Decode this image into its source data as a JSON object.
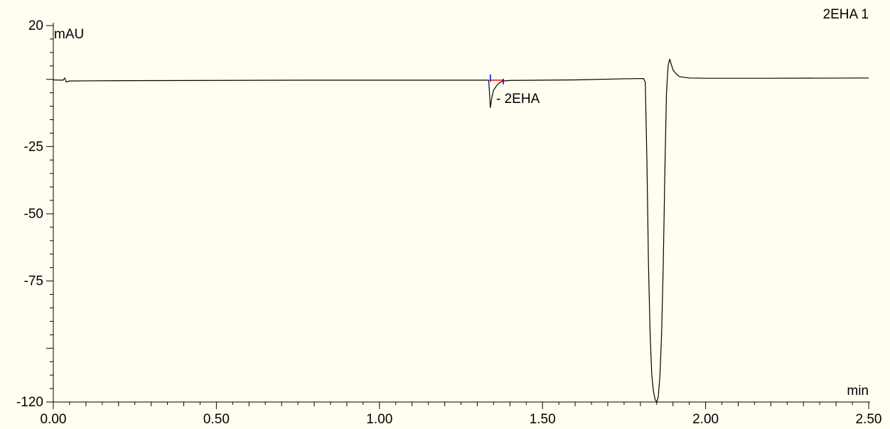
{
  "chart_data": {
    "type": "line",
    "title": "2EHA 1",
    "xlabel": "min",
    "ylabel": "mAU",
    "xlim": [
      0.0,
      2.5
    ],
    "ylim": [
      -120,
      20
    ],
    "x_ticks": [
      0.0,
      0.5,
      1.0,
      1.5,
      2.0,
      2.5
    ],
    "x_tick_labels": [
      "0.00",
      "0.50",
      "1.00",
      "1.50",
      "2.00",
      "2.50"
    ],
    "y_ticks": [
      20,
      -25,
      -50,
      -75,
      -120
    ],
    "y_tick_labels": [
      "20",
      "-25",
      "-50",
      "-75",
      "-120"
    ],
    "grid": false,
    "colors": {
      "trace": "#000000",
      "baseline_marker": "#ff0000",
      "peak_marker": "#0000ff",
      "background": "#fffef0"
    },
    "series": [
      {
        "x": [
          0.0,
          0.03,
          0.035,
          0.04,
          0.05,
          0.2,
          0.5,
          0.8,
          1.0,
          1.2,
          1.33,
          1.335,
          1.34,
          1.345,
          1.35,
          1.36,
          1.37,
          1.38,
          1.4,
          1.6,
          1.75,
          1.81,
          1.815,
          1.82,
          1.825,
          1.83,
          1.835,
          1.84,
          1.845,
          1.85,
          1.855,
          1.86,
          1.865,
          1.87,
          1.875,
          1.88,
          1.885,
          1.89,
          1.895,
          1.9,
          1.91,
          1.92,
          1.95,
          2.0,
          2.2,
          2.5
        ],
        "y": [
          -0.2,
          -0.3,
          0.5,
          -1.0,
          -0.6,
          -0.5,
          -0.4,
          -0.3,
          -0.3,
          -0.3,
          -0.3,
          -0.3,
          -10.5,
          -6.5,
          -4.0,
          -2.2,
          -1.1,
          -0.6,
          -0.4,
          -0.2,
          0.2,
          0.3,
          -1.0,
          -30.0,
          -70.0,
          -95.0,
          -110.0,
          -116.0,
          -119.0,
          -120.0,
          -118.0,
          -110.0,
          -95.0,
          -70.0,
          -35.0,
          -5.0,
          5.0,
          7.5,
          5.5,
          3.5,
          2.0,
          1.0,
          0.5,
          0.4,
          0.4,
          0.5
        ]
      }
    ],
    "annotations": [
      {
        "text": "- 2EHA",
        "x": 1.34,
        "y": -6.8
      }
    ],
    "baseline_segment": {
      "x_start": 1.34,
      "x_end": 1.38,
      "y": -0.3
    }
  }
}
